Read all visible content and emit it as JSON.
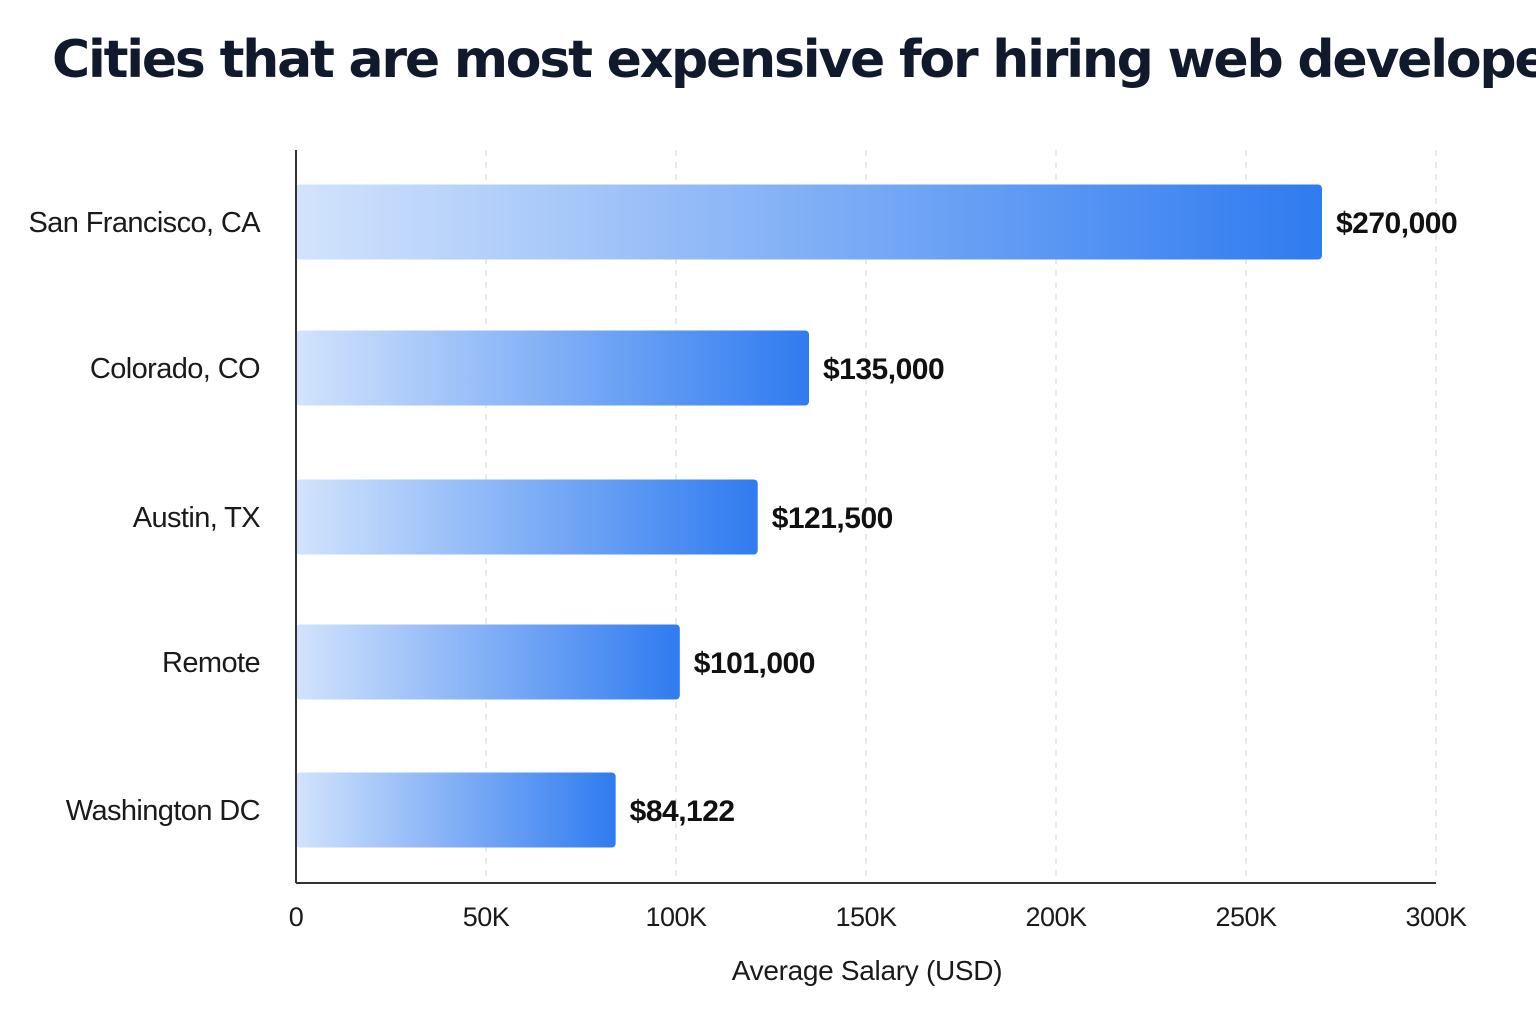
{
  "chart_data": {
    "type": "bar",
    "orientation": "horizontal",
    "title": "Cities that are most expensive for hiring web developers",
    "xlabel": "Average Salary (USD)",
    "ylabel": "",
    "categories": [
      "San Francisco, CA",
      "Colorado, CO",
      "Austin, TX",
      "Remote",
      "Washington DC"
    ],
    "values": [
      270000,
      135000,
      121500,
      101000,
      84122
    ],
    "value_labels": [
      "$270,000",
      "$135,000",
      "$121,500",
      "$101,000",
      "$84,122"
    ],
    "xlim": [
      0,
      300000
    ],
    "x_ticks": [
      0,
      50000,
      100000,
      150000,
      200000,
      250000,
      300000
    ],
    "x_tick_labels": [
      "0",
      "50K",
      "100K",
      "150K",
      "200K",
      "250K",
      "300K"
    ],
    "grid": true,
    "grid_style": "dashed vertical",
    "legend": "none",
    "colors": {
      "bar_start": "#d2e3fc",
      "bar_end": "#2f7bf0",
      "title": "#111a2c",
      "axis": "#333333",
      "grid": "#dcdcdc"
    }
  }
}
